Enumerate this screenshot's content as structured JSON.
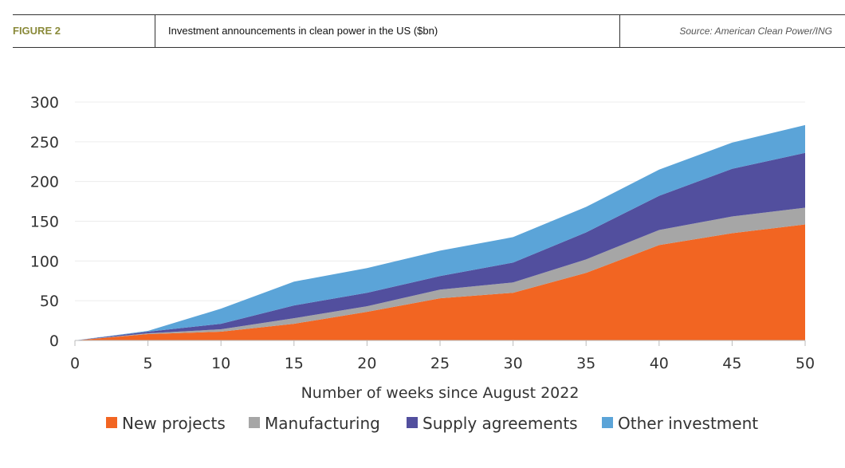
{
  "header": {
    "figure_label": "FIGURE 2",
    "title": "Investment announcements in clean power in the US ($bn)",
    "source": "Source: American Clean Power/ING"
  },
  "chart_data": {
    "type": "area",
    "stacked": true,
    "title": "Investment announcements in clean power in the US ($bn)",
    "xlabel": "Number of weeks since August 2022",
    "ylabel": "",
    "x": [
      0,
      5,
      10,
      15,
      20,
      25,
      30,
      35,
      40,
      45,
      50
    ],
    "xlim": [
      0,
      50
    ],
    "ylim": [
      0,
      300
    ],
    "yticks": [
      0,
      50,
      100,
      150,
      200,
      250,
      300
    ],
    "xticks": [
      0,
      5,
      10,
      15,
      20,
      25,
      30,
      35,
      40,
      45,
      50
    ],
    "grid": "horizontal",
    "legend_position": "bottom",
    "series": [
      {
        "name": "New projects",
        "color": "#f26522",
        "values": [
          0,
          8,
          11,
          21,
          36,
          53,
          60,
          85,
          120,
          135,
          146
        ]
      },
      {
        "name": "Manufacturing",
        "color": "#a6a6a6",
        "values": [
          0,
          1,
          3,
          7,
          7,
          11,
          13,
          17,
          19,
          21,
          21
        ]
      },
      {
        "name": "Supply agreements",
        "color": "#524f9e",
        "values": [
          0,
          2,
          7,
          16,
          17,
          17,
          25,
          34,
          43,
          60,
          69
        ]
      },
      {
        "name": "Other investment",
        "color": "#5ba4d8",
        "values": [
          0,
          1,
          19,
          30,
          31,
          32,
          32,
          32,
          33,
          33,
          35
        ]
      }
    ]
  }
}
